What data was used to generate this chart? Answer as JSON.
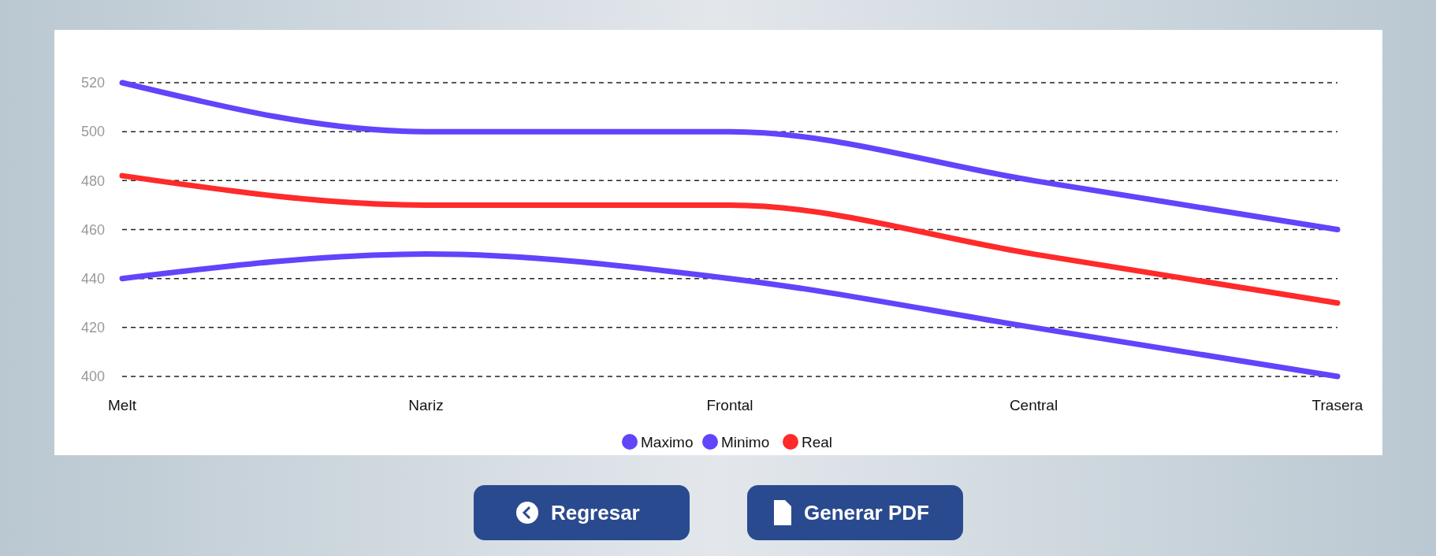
{
  "chart_data": {
    "type": "line",
    "categories": [
      "Melt",
      "Nariz",
      "Frontal",
      "Central",
      "Trasera"
    ],
    "series": [
      {
        "name": "Maximo",
        "color": "#6045fb",
        "values": [
          520,
          500,
          500,
          480,
          460
        ]
      },
      {
        "name": "Minimo",
        "color": "#6045fb",
        "values": [
          440,
          450,
          440,
          420,
          400
        ]
      },
      {
        "name": "Real",
        "color": "#ff2a2a",
        "values": [
          482,
          470,
          470,
          450,
          430
        ]
      }
    ],
    "ylim": [
      400,
      520
    ],
    "yticks": [
      400,
      420,
      440,
      460,
      480,
      500,
      520
    ],
    "grid": "y",
    "legend": "bottom",
    "marker": "none",
    "line_style": "solid",
    "annotations": [
      "Regresar",
      "Generar PDF"
    ]
  }
}
